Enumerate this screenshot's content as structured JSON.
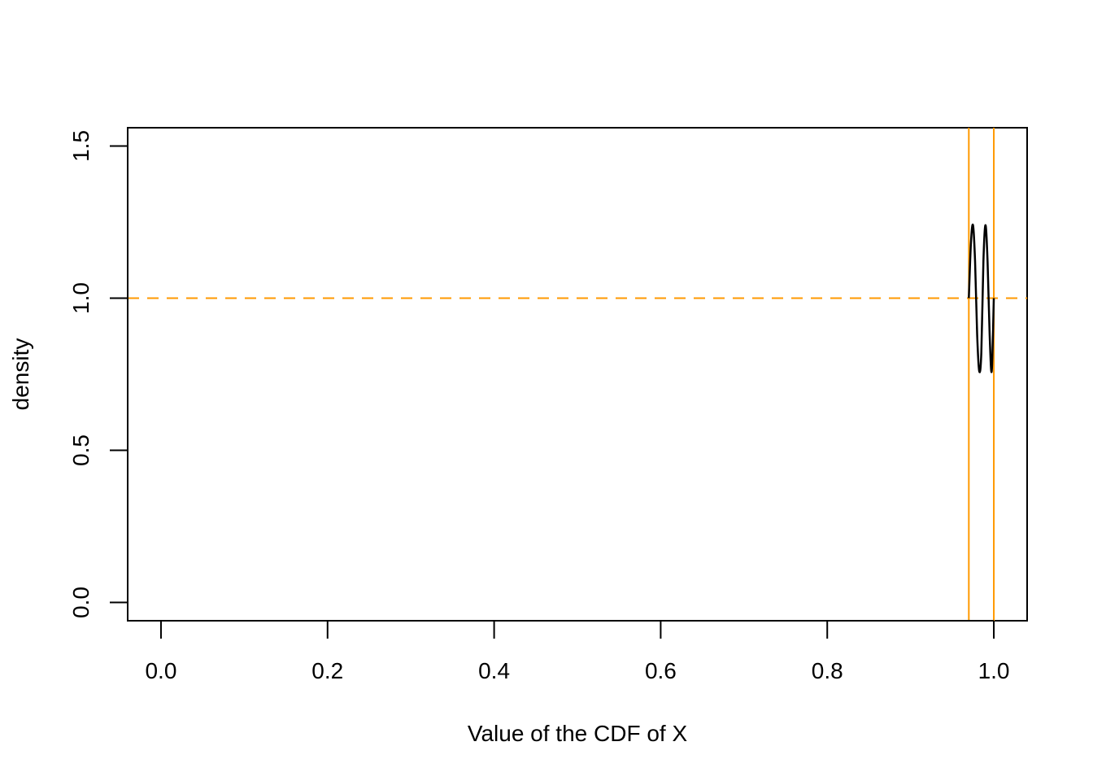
{
  "chart_data": {
    "type": "line",
    "title": "",
    "xlabel": "Value of the CDF of X",
    "ylabel": "density",
    "xlim": [
      -0.04,
      1.04
    ],
    "ylim": [
      -0.06,
      1.56
    ],
    "x_ticks": [
      0.0,
      0.2,
      0.4,
      0.6,
      0.8,
      1.0
    ],
    "x_tick_labels": [
      "0.0",
      "0.2",
      "0.4",
      "0.6",
      "0.8",
      "1.0"
    ],
    "y_ticks": [
      0.0,
      0.5,
      1.0,
      1.5
    ],
    "y_tick_labels": [
      "0.0",
      "0.5",
      "1.0",
      "1.5"
    ],
    "grid": false,
    "series": [
      {
        "color": "#000000",
        "style": "solid",
        "x": [
          0.97,
          0.9725,
          0.975,
          0.9775,
          0.98,
          0.9825,
          0.985,
          0.9875,
          0.99,
          0.9925,
          0.995,
          0.9975,
          1.0
        ],
        "y": [
          1.0,
          1.18,
          1.24,
          1.12,
          0.88,
          0.76,
          0.82,
          1.12,
          1.24,
          1.12,
          0.88,
          0.76,
          1.0
        ]
      }
    ],
    "reference_lines": [
      {
        "orientation": "horizontal",
        "value": 1.0,
        "color": "#FF9900",
        "style": "dashed"
      },
      {
        "orientation": "vertical",
        "value": 0.97,
        "color": "#FF9900",
        "style": "solid"
      },
      {
        "orientation": "vertical",
        "value": 1.0,
        "color": "#FF9900",
        "style": "solid"
      }
    ]
  }
}
